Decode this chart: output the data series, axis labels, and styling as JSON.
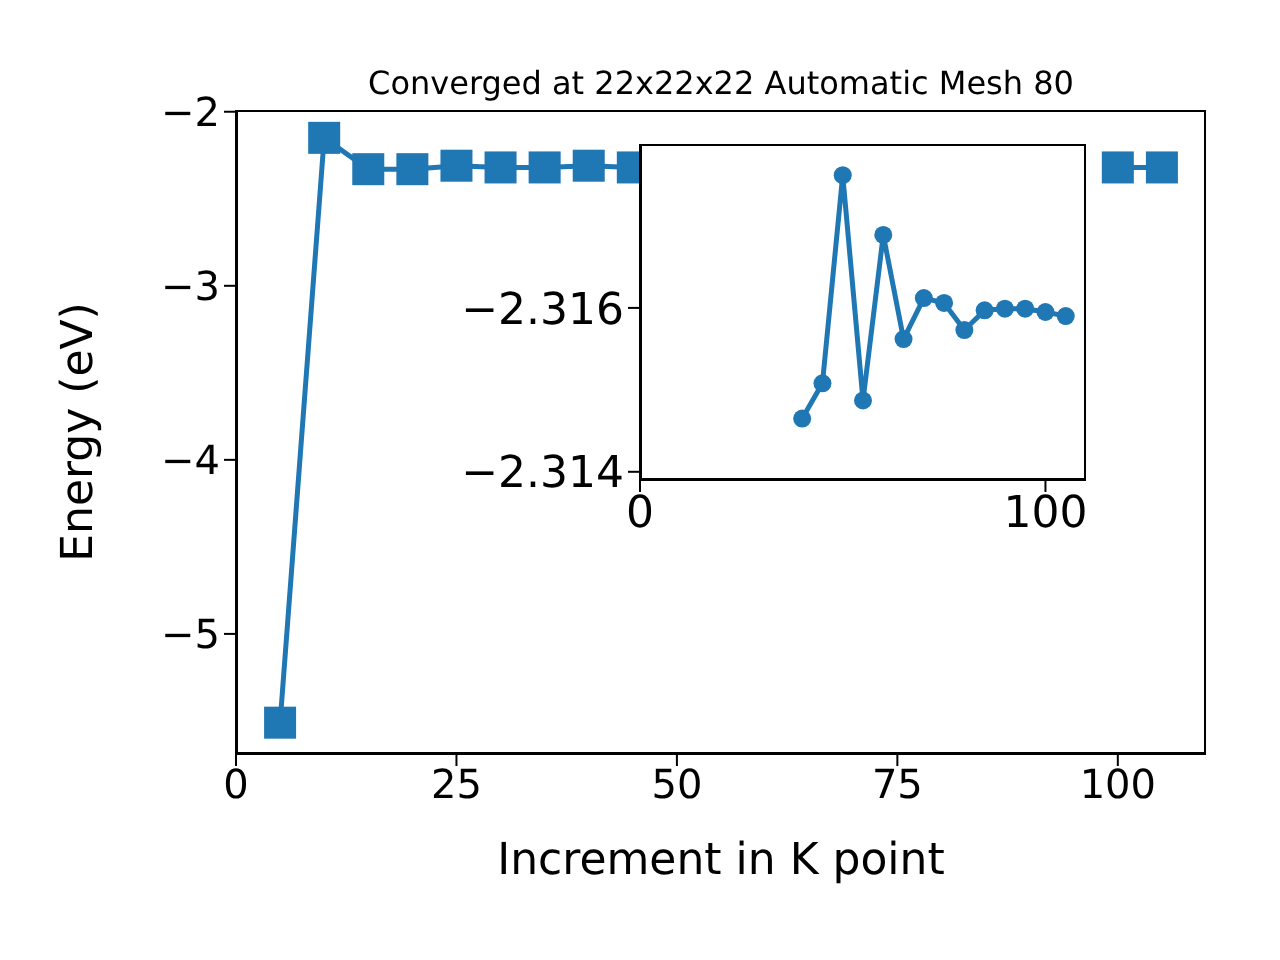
{
  "chart_data": [
    {
      "type": "line",
      "title": "Converged at 22x22x22 Automatic Mesh 80",
      "xlabel": "Increment in K point",
      "ylabel": "Energy (eV)",
      "x": [
        5,
        10,
        15,
        20,
        25,
        30,
        35,
        40,
        45,
        50,
        55,
        60,
        65,
        70,
        75,
        80,
        85,
        90,
        95,
        100,
        105
      ],
      "series": [
        {
          "color": "#1f77b4",
          "values": [
            -5.51,
            -2.15,
            -2.33,
            -2.33,
            -2.31,
            -2.32,
            -2.32,
            -2.31,
            -2.32,
            null,
            null,
            null,
            null,
            null,
            null,
            null,
            null,
            null,
            null,
            -2.32,
            -2.32
          ]
        }
      ],
      "xlim": [
        0,
        110
      ],
      "xticks": [
        0,
        25,
        50,
        75,
        100
      ],
      "ylim": [
        -5.69,
        -1.99
      ],
      "yticks": [
        -5,
        -4,
        -3,
        -2
      ],
      "marker": "square",
      "grid": false,
      "legend": false
    },
    {
      "type": "line",
      "x": [
        40,
        45,
        50,
        55,
        60,
        65,
        70,
        75,
        80,
        85,
        90,
        95,
        100,
        105
      ],
      "series": [
        {
          "color": "#1f77b4",
          "values": [
            -2.31465,
            -2.31508,
            -2.31762,
            -2.31487,
            -2.31689,
            -2.31562,
            -2.31612,
            -2.31606,
            -2.31573,
            -2.31597,
            -2.31599,
            -2.31599,
            -2.31595,
            -2.3159
          ]
        }
      ],
      "xlim": [
        0,
        110
      ],
      "xticks": [
        0,
        100
      ],
      "ylim": [
        -2.3139,
        -2.318
      ],
      "yticks": [
        -2.316,
        -2.314
      ],
      "marker": "circle",
      "grid": false,
      "legend": false
    }
  ]
}
